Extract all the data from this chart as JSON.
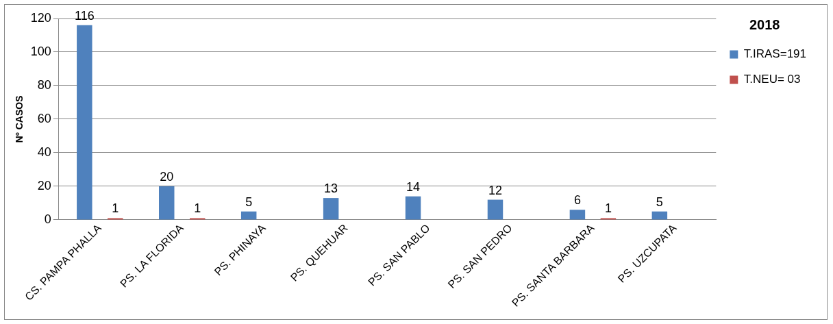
{
  "chart_data": {
    "type": "bar",
    "ylabel": "Nº CASOS",
    "legend_title": "2018",
    "categories": [
      "CS. PAMPA PHALLA",
      "PS. LA FLORIDA",
      "PS. PHINAYA",
      "PS. QUEHUAR",
      "PS. SAN PABLO",
      "PS. SAN PEDRO",
      "PS. SANTA BARBARA",
      "PS. UZCUPATA"
    ],
    "series": [
      {
        "name": "T.IRAS=191",
        "color": "#4f81bd",
        "values": [
          116,
          20,
          5,
          13,
          14,
          12,
          6,
          5
        ]
      },
      {
        "name": "T.NEU= 03",
        "color": "#c0504d",
        "values": [
          1,
          1,
          null,
          null,
          null,
          null,
          1,
          null
        ]
      }
    ],
    "ylim": [
      0,
      120
    ],
    "yticks": [
      0,
      20,
      40,
      60,
      80,
      100,
      120
    ],
    "grid": "y",
    "legend": "right",
    "data_labels": true
  }
}
